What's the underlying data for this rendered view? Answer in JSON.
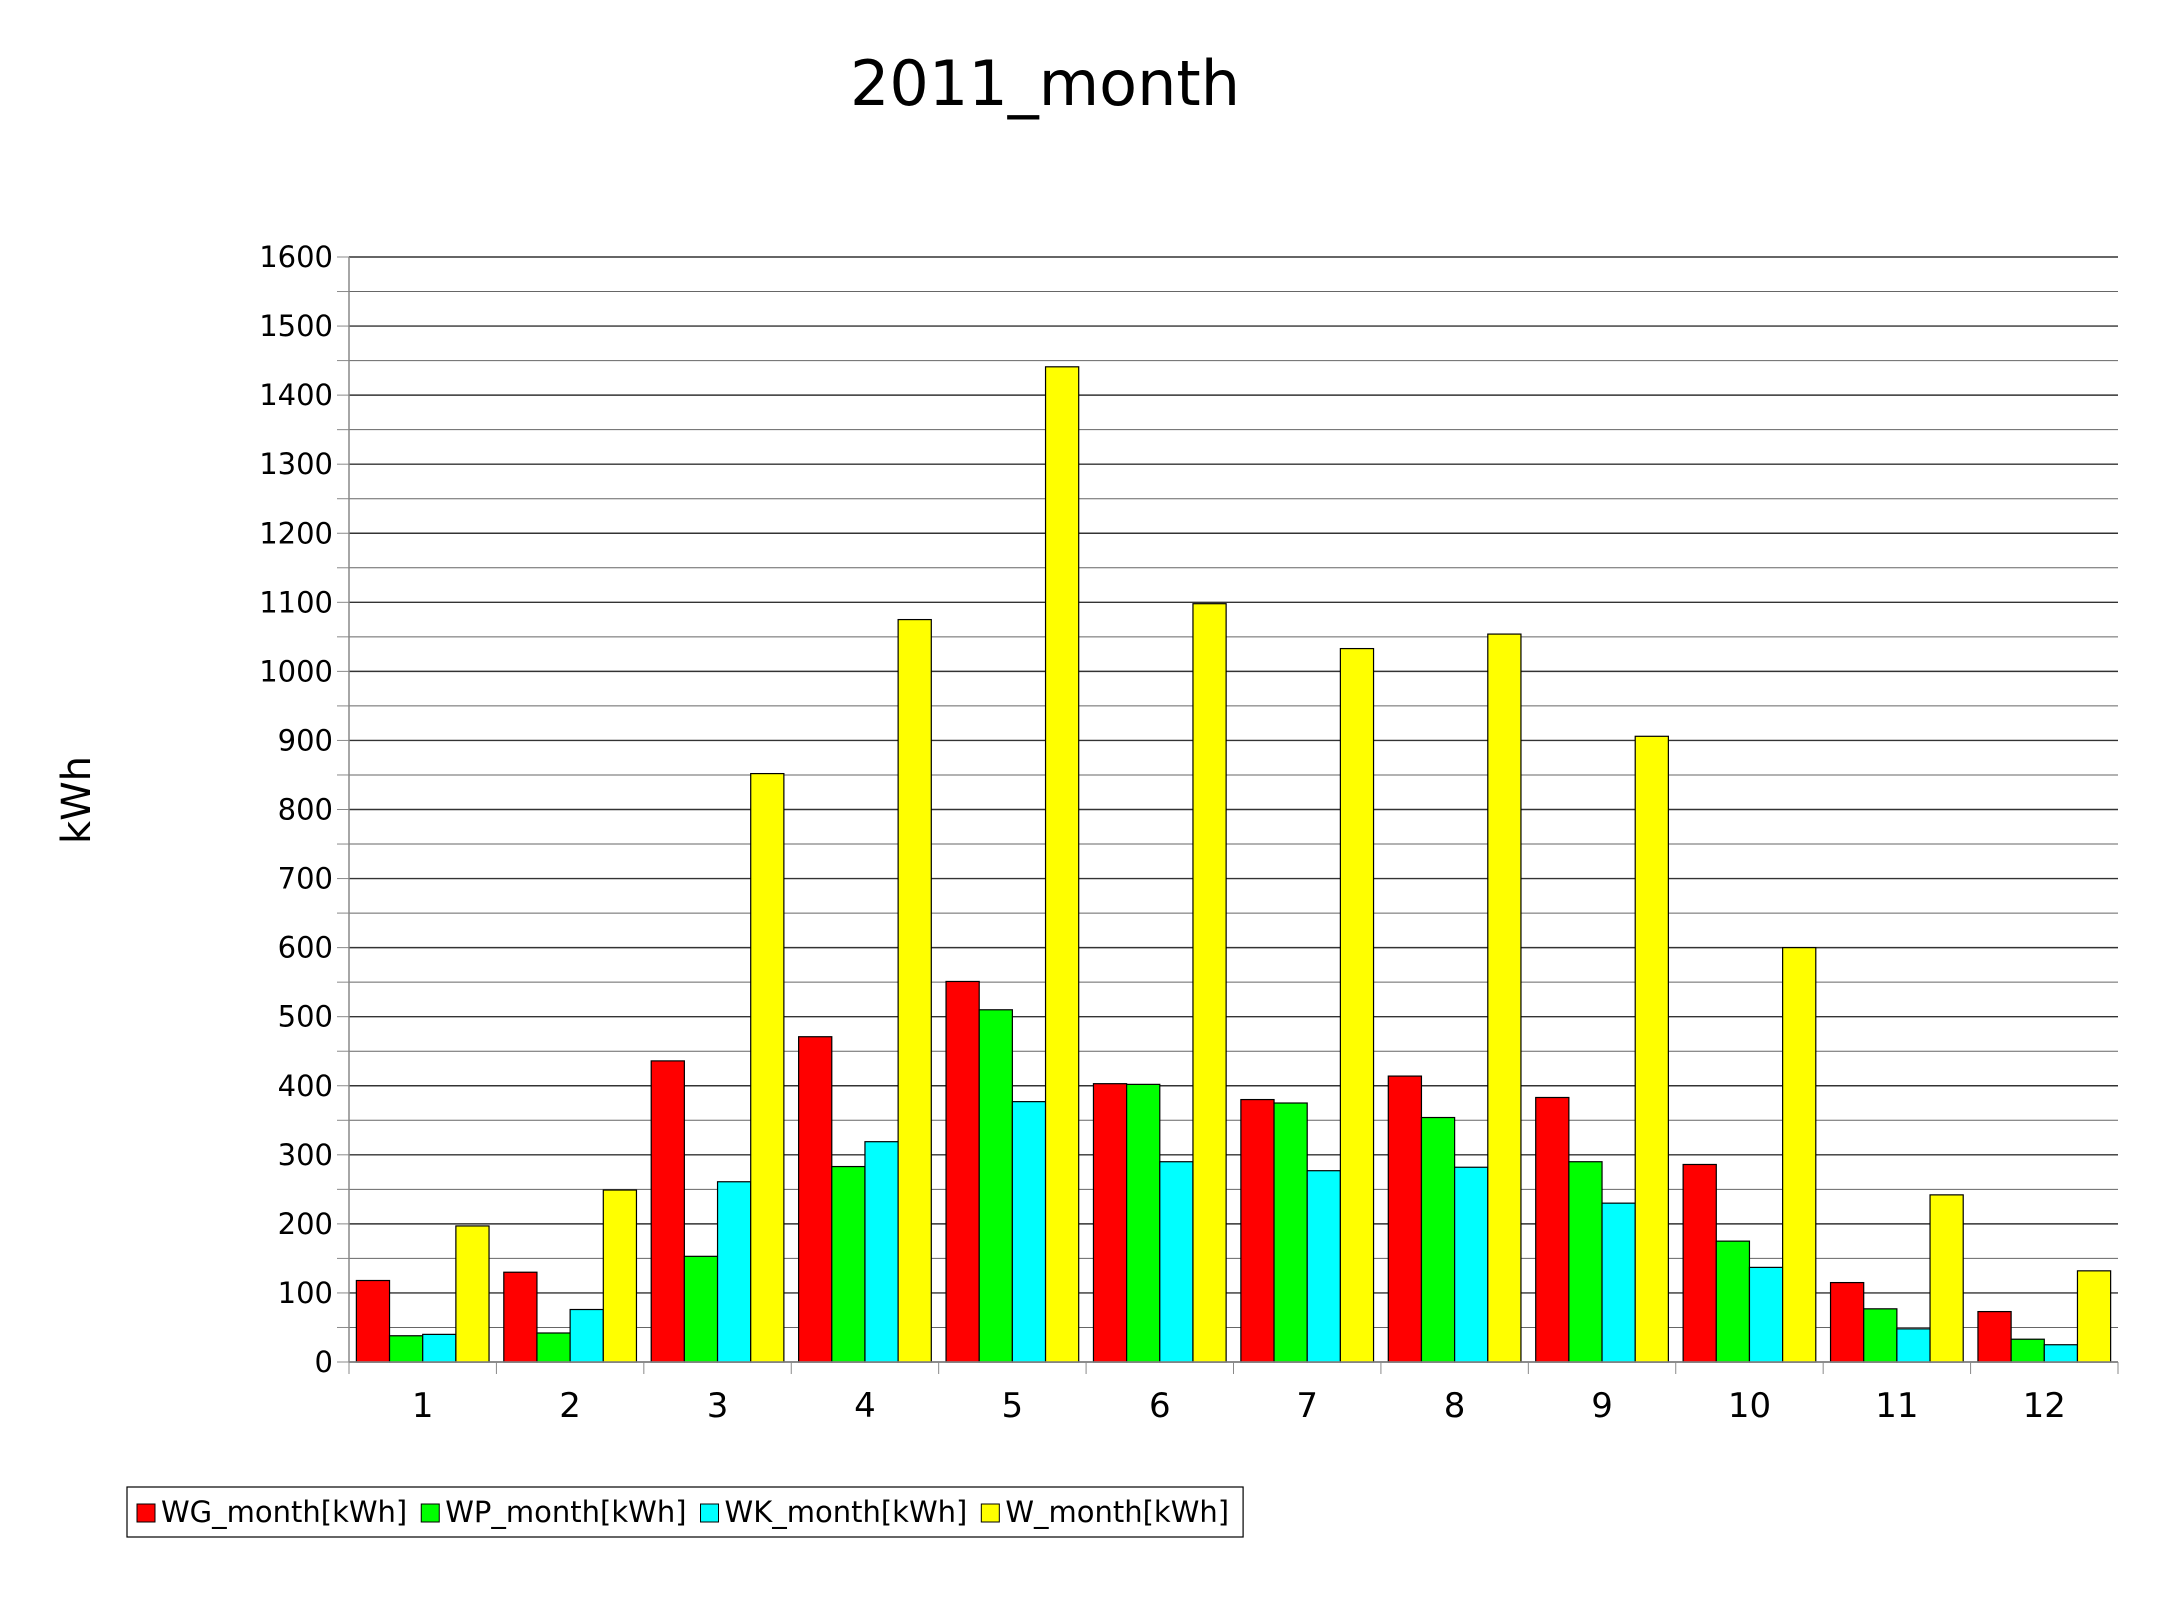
{
  "chart_data": {
    "type": "bar",
    "title": "2011_month",
    "xlabel": "",
    "ylabel": "kWh",
    "ylim": [
      0,
      1600
    ],
    "y_major_step": 100,
    "y_minor_step": 50,
    "grid": true,
    "legend_position": "bottom-left",
    "categories": [
      "1",
      "2",
      "3",
      "4",
      "5",
      "6",
      "7",
      "8",
      "9",
      "10",
      "11",
      "12"
    ],
    "series": [
      {
        "name": "WG_month[kWh]",
        "color": "#ff0000",
        "values": [
          118,
          130,
          436,
          471,
          551,
          403,
          380,
          414,
          383,
          286,
          115,
          73
        ]
      },
      {
        "name": "WP_month[kWh]",
        "color": "#00ff00",
        "values": [
          38,
          42,
          153,
          283,
          510,
          402,
          375,
          354,
          290,
          175,
          77,
          33
        ]
      },
      {
        "name": "WK_month[kWh]",
        "color": "#00ffff",
        "values": [
          40,
          76,
          261,
          319,
          377,
          290,
          277,
          282,
          230,
          137,
          48,
          25
        ]
      },
      {
        "name": "W_month[kWh]",
        "color": "#ffff00",
        "values": [
          197,
          249,
          852,
          1075,
          1441,
          1098,
          1033,
          1054,
          906,
          600,
          242,
          132
        ]
      }
    ]
  }
}
